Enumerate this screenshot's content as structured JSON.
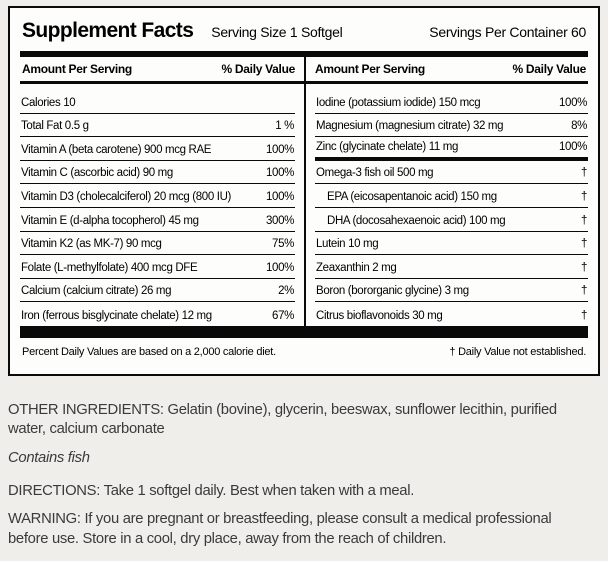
{
  "label": {
    "title": "Supplement Facts",
    "serving_size": "Serving Size 1 Softgel",
    "servings_per_container": "Servings Per Container 60",
    "column_headers": {
      "amount": "Amount Per Serving",
      "daily_value": "% Daily Value"
    },
    "left_rows": [
      {
        "name": "Calories 10",
        "value": ""
      },
      {
        "name": "Total Fat  0.5 g",
        "value": "1 %"
      },
      {
        "name": "Vitamin A (beta carotene) 900 mcg RAE",
        "value": "100%"
      },
      {
        "name": "Vitamin C (ascorbic acid) 90 mg",
        "value": "100%"
      },
      {
        "name": "Vitamin D3 (cholecalciferol) 20 mcg (800 IU)",
        "value": "100%"
      },
      {
        "name": "Vitamin E (d-alpha tocopherol) 45 mg",
        "value": "300%"
      },
      {
        "name": "Vitamin K2 (as MK-7) 90 mcg",
        "value": "75%"
      },
      {
        "name": "Folate (L-methylfolate) 400 mcg DFE",
        "value": "100%"
      },
      {
        "name": "Calcium (calcium citrate) 26 mg",
        "value": "2%"
      },
      {
        "name": "Iron (ferrous bisglycinate chelate) 12 mg",
        "value": "67%"
      }
    ],
    "right_rows": [
      {
        "name": "Iodine (potassium iodide) 150 mcg",
        "value": "100%"
      },
      {
        "name": "Magnesium (magnesium citrate) 32 mg",
        "value": "8%"
      },
      {
        "name": "Zinc (glycinate chelate) 11 mg",
        "value": "100%",
        "thick_below": true
      },
      {
        "name": "Omega-3 fish oil 500 mg",
        "value": "†"
      },
      {
        "name": "EPA (eicosapentanoic acid) 150 mg",
        "value": "†",
        "indent": true
      },
      {
        "name": "DHA (docosahexaenoic acid) 100 mg",
        "value": "†",
        "indent": true
      },
      {
        "name": "Lutein 10 mg",
        "value": "†"
      },
      {
        "name": "Zeaxanthin 2 mg",
        "value": "†"
      },
      {
        "name": "Boron (bororganic glycine) 3 mg",
        "value": "†"
      },
      {
        "name": "Citrus bioflavonoids 30 mg",
        "value": "†"
      }
    ],
    "footnote_left": "Percent Daily Values are based on a 2,000 calorie diet.",
    "footnote_right": "† Daily Value not established."
  },
  "below": {
    "other_ingredients": "OTHER INGREDIENTS: Gelatin (bovine), glycerin, beeswax, sunflower lecithin, purified water, calcium carbonate",
    "contains": "Contains fish",
    "directions": "DIRECTIONS: Take 1 softgel daily. Best when taken with a meal.",
    "warning": "WARNING: If you are pregnant or breastfeeding, please consult a medical professional before use. Store in a cool, dry place, away from the reach of children."
  },
  "colors": {
    "page_background": "#efeeea",
    "label_background": "#fdfdfc",
    "rule_black": "#0a0a0a",
    "body_text_gray": "#3a3a3a"
  }
}
